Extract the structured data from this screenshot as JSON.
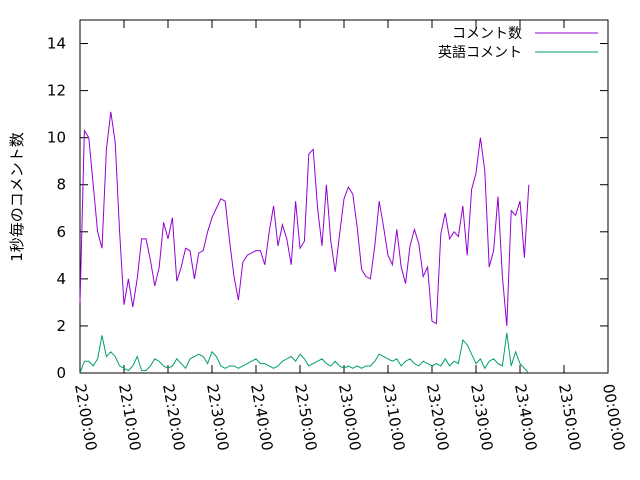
{
  "chart_data": {
    "type": "line",
    "title": "",
    "xlabel": "",
    "ylabel": "1秒毎のコメント数",
    "ylim": [
      0,
      15
    ],
    "yticks": [
      0,
      2,
      4,
      6,
      8,
      10,
      12,
      14
    ],
    "xticks": [
      "22:00:00",
      "22:10:00",
      "22:20:00",
      "22:30:00",
      "22:40:00",
      "22:50:00",
      "23:00:00",
      "23:10:00",
      "23:20:00",
      "23:30:00",
      "23:40:00",
      "23:50:00",
      "00:00:00"
    ],
    "xrange_minutes": [
      0,
      120
    ],
    "grid": false,
    "legend_position": "top-right",
    "series": [
      {
        "name": "コメント数",
        "color": "#9400d3",
        "points": [
          [
            0,
            3
          ],
          [
            1,
            10.3
          ],
          [
            2,
            10
          ],
          [
            3,
            8
          ],
          [
            4,
            6
          ],
          [
            5,
            5.3
          ],
          [
            6,
            9.5
          ],
          [
            7,
            11.1
          ],
          [
            8,
            9.8
          ],
          [
            9,
            6
          ],
          [
            10,
            2.9
          ],
          [
            11,
            4
          ],
          [
            12,
            2.8
          ],
          [
            13,
            4
          ],
          [
            14,
            5.7
          ],
          [
            15,
            5.7
          ],
          [
            16,
            4.8
          ],
          [
            17,
            3.7
          ],
          [
            18,
            4.5
          ],
          [
            19,
            6.4
          ],
          [
            20,
            5.7
          ],
          [
            21,
            6.6
          ],
          [
            22,
            3.9
          ],
          [
            23,
            4.5
          ],
          [
            24,
            5.3
          ],
          [
            25,
            5.2
          ],
          [
            26,
            4
          ],
          [
            27,
            5.1
          ],
          [
            28,
            5.2
          ],
          [
            29,
            6
          ],
          [
            30,
            6.6
          ],
          [
            31,
            7
          ],
          [
            32,
            7.4
          ],
          [
            33,
            7.3
          ],
          [
            34,
            5.6
          ],
          [
            35,
            4.1
          ],
          [
            36,
            3.1
          ],
          [
            37,
            4.7
          ],
          [
            38,
            5
          ],
          [
            39,
            5.1
          ],
          [
            40,
            5.2
          ],
          [
            41,
            5.2
          ],
          [
            42,
            4.6
          ],
          [
            43,
            6
          ],
          [
            44,
            7.1
          ],
          [
            45,
            5.4
          ],
          [
            46,
            6.3
          ],
          [
            47,
            5.7
          ],
          [
            48,
            4.6
          ],
          [
            49,
            7.3
          ],
          [
            50,
            5.3
          ],
          [
            51,
            5.6
          ],
          [
            52,
            9.3
          ],
          [
            53,
            9.5
          ],
          [
            54,
            7
          ],
          [
            55,
            5.4
          ],
          [
            56,
            8
          ],
          [
            57,
            5.6
          ],
          [
            58,
            4.3
          ],
          [
            59,
            5.9
          ],
          [
            60,
            7.4
          ],
          [
            61,
            7.9
          ],
          [
            62,
            7.6
          ],
          [
            63,
            6.2
          ],
          [
            64,
            4.4
          ],
          [
            65,
            4.1
          ],
          [
            66,
            4
          ],
          [
            67,
            5.4
          ],
          [
            68,
            7.3
          ],
          [
            69,
            6.2
          ],
          [
            70,
            5
          ],
          [
            71,
            4.6
          ],
          [
            72,
            6.1
          ],
          [
            73,
            4.5
          ],
          [
            74,
            3.8
          ],
          [
            75,
            5.4
          ],
          [
            76,
            6.1
          ],
          [
            77,
            5.5
          ],
          [
            78,
            4.1
          ],
          [
            79,
            4.5
          ],
          [
            80,
            2.2
          ],
          [
            81,
            2.1
          ],
          [
            82,
            5.9
          ],
          [
            83,
            6.8
          ],
          [
            84,
            5.7
          ],
          [
            85,
            6
          ],
          [
            86,
            5.8
          ],
          [
            87,
            7.1
          ],
          [
            88,
            5
          ],
          [
            89,
            7.8
          ],
          [
            90,
            8.5
          ],
          [
            91,
            10
          ],
          [
            92,
            8.6
          ],
          [
            93,
            4.5
          ],
          [
            94,
            5.2
          ],
          [
            95,
            7.5
          ],
          [
            96,
            4.1
          ],
          [
            97,
            2
          ],
          [
            98,
            6.9
          ],
          [
            99,
            6.7
          ],
          [
            100,
            7.3
          ],
          [
            101,
            4.9
          ],
          [
            102,
            8
          ]
        ]
      },
      {
        "name": "英語コメント",
        "color": "#009e73",
        "points": [
          [
            0,
            0
          ],
          [
            1,
            0.5
          ],
          [
            2,
            0.5
          ],
          [
            3,
            0.3
          ],
          [
            4,
            0.6
          ],
          [
            5,
            1.6
          ],
          [
            6,
            0.7
          ],
          [
            7,
            0.9
          ],
          [
            8,
            0.7
          ],
          [
            9,
            0.3
          ],
          [
            10,
            0.2
          ],
          [
            11,
            0.1
          ],
          [
            12,
            0.3
          ],
          [
            13,
            0.7
          ],
          [
            14,
            0.1
          ],
          [
            15,
            0.1
          ],
          [
            16,
            0.3
          ],
          [
            17,
            0.6
          ],
          [
            18,
            0.5
          ],
          [
            19,
            0.3
          ],
          [
            20,
            0.2
          ],
          [
            21,
            0.3
          ],
          [
            22,
            0.6
          ],
          [
            23,
            0.4
          ],
          [
            24,
            0.2
          ],
          [
            25,
            0.6
          ],
          [
            26,
            0.7
          ],
          [
            27,
            0.8
          ],
          [
            28,
            0.7
          ],
          [
            29,
            0.4
          ],
          [
            30,
            0.9
          ],
          [
            31,
            0.7
          ],
          [
            32,
            0.3
          ],
          [
            33,
            0.2
          ],
          [
            34,
            0.3
          ],
          [
            35,
            0.3
          ],
          [
            36,
            0.2
          ],
          [
            37,
            0.3
          ],
          [
            38,
            0.4
          ],
          [
            39,
            0.5
          ],
          [
            40,
            0.6
          ],
          [
            41,
            0.4
          ],
          [
            42,
            0.4
          ],
          [
            43,
            0.3
          ],
          [
            44,
            0.2
          ],
          [
            45,
            0.3
          ],
          [
            46,
            0.5
          ],
          [
            47,
            0.6
          ],
          [
            48,
            0.7
          ],
          [
            49,
            0.5
          ],
          [
            50,
            0.8
          ],
          [
            51,
            0.6
          ],
          [
            52,
            0.3
          ],
          [
            53,
            0.4
          ],
          [
            54,
            0.5
          ],
          [
            55,
            0.6
          ],
          [
            56,
            0.4
          ],
          [
            57,
            0.3
          ],
          [
            58,
            0.5
          ],
          [
            59,
            0.3
          ],
          [
            60,
            0.2
          ],
          [
            61,
            0.3
          ],
          [
            62,
            0.2
          ],
          [
            63,
            0.3
          ],
          [
            64,
            0.2
          ],
          [
            65,
            0.3
          ],
          [
            66,
            0.3
          ],
          [
            67,
            0.5
          ],
          [
            68,
            0.8
          ],
          [
            69,
            0.7
          ],
          [
            70,
            0.6
          ],
          [
            71,
            0.5
          ],
          [
            72,
            0.6
          ],
          [
            73,
            0.3
          ],
          [
            74,
            0.5
          ],
          [
            75,
            0.6
          ],
          [
            76,
            0.4
          ],
          [
            77,
            0.3
          ],
          [
            78,
            0.5
          ],
          [
            79,
            0.4
          ],
          [
            80,
            0.3
          ],
          [
            81,
            0.4
          ],
          [
            82,
            0.3
          ],
          [
            83,
            0.6
          ],
          [
            84,
            0.3
          ],
          [
            85,
            0.5
          ],
          [
            86,
            0.4
          ],
          [
            87,
            1.4
          ],
          [
            88,
            1.2
          ],
          [
            89,
            0.8
          ],
          [
            90,
            0.4
          ],
          [
            91,
            0.6
          ],
          [
            92,
            0.2
          ],
          [
            93,
            0.5
          ],
          [
            94,
            0.6
          ],
          [
            95,
            0.4
          ],
          [
            96,
            0.3
          ],
          [
            97,
            1.7
          ],
          [
            98,
            0.3
          ],
          [
            99,
            0.9
          ],
          [
            100,
            0.4
          ],
          [
            101,
            0.2
          ],
          [
            102,
            0
          ]
        ]
      }
    ]
  }
}
